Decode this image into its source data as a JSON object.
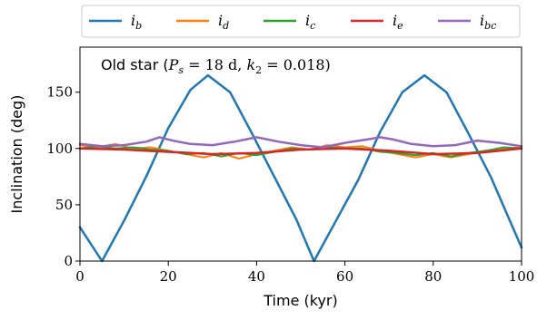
{
  "chart_data": {
    "type": "line",
    "xlabel": "Time (kyr)",
    "ylabel": "Inclination (deg)",
    "xlim": [
      0,
      100
    ],
    "ylim": [
      0,
      190
    ],
    "xticks": [
      0,
      20,
      40,
      60,
      80,
      100
    ],
    "yticks": [
      0,
      50,
      100,
      150
    ],
    "grid": false,
    "legend_placement": "top, outside plot, single row",
    "annotation": {
      "prefix": "Old star (",
      "ps_symbol": "P",
      "ps_sub": "s",
      "ps_value": " = 18 d, ",
      "k_symbol": "k",
      "k_sub": "2",
      "k_value": " = 0.018)"
    },
    "series": [
      {
        "name": "ib",
        "label_main": "i",
        "label_sub": "b",
        "color": "#1f77b4",
        "width": 2.5,
        "x": [
          0,
          5,
          10,
          15,
          20,
          25,
          29,
          34,
          39,
          44,
          49,
          53,
          58,
          63,
          68,
          73,
          78,
          83,
          88,
          93,
          98,
          100
        ],
        "y": [
          30,
          0,
          36,
          75,
          118,
          152,
          165,
          150,
          113,
          75,
          37,
          0,
          36,
          72,
          115,
          150,
          165,
          150,
          113,
          75,
          30,
          12
        ]
      },
      {
        "name": "id",
        "label_main": "i",
        "label_sub": "d",
        "color": "#ff7f0e",
        "width": 2,
        "x": [
          0,
          4,
          8,
          12,
          16,
          20,
          24,
          28,
          32,
          36,
          40,
          44,
          48,
          52,
          56,
          60,
          64,
          68,
          72,
          76,
          80,
          84,
          88,
          92,
          96,
          100
        ],
        "y": [
          103,
          101,
          104,
          100,
          101,
          98,
          95,
          92,
          96,
          91,
          95,
          98,
          101,
          99,
          103,
          101,
          102,
          98,
          95,
          92,
          95,
          92,
          95,
          98,
          100,
          101
        ]
      },
      {
        "name": "ic",
        "label_main": "i",
        "label_sub": "c",
        "color": "#2ca02c",
        "width": 2,
        "x": [
          0,
          4,
          8,
          12,
          16,
          20,
          24,
          28,
          32,
          36,
          40,
          44,
          48,
          52,
          56,
          60,
          64,
          68,
          72,
          76,
          80,
          84,
          88,
          92,
          96,
          100
        ],
        "y": [
          100,
          102,
          100,
          101,
          99,
          98,
          95,
          96,
          93,
          96,
          94,
          97,
          100,
          99,
          101,
          100,
          100,
          97,
          96,
          94,
          96,
          93,
          96,
          98,
          101,
          100
        ]
      },
      {
        "name": "ie",
        "label_main": "i",
        "label_sub": "e",
        "color": "#d62728",
        "width": 2.5,
        "x": [
          0,
          10,
          20,
          30,
          40,
          50,
          60,
          70,
          80,
          90,
          100
        ],
        "y": [
          100,
          99,
          97,
          95,
          96,
          99,
          100,
          98,
          95,
          96,
          100
        ]
      },
      {
        "name": "ibc",
        "label_main": "i",
        "label_sub": "bc",
        "color": "#9467bd",
        "width": 2.5,
        "x": [
          0,
          5,
          10,
          15,
          18,
          21,
          25,
          30,
          35,
          40,
          45,
          50,
          55,
          60,
          65,
          68,
          71,
          75,
          80,
          85,
          90,
          95,
          100
        ],
        "y": [
          104,
          102,
          103,
          106,
          110,
          107,
          104,
          103,
          106,
          110,
          106,
          103,
          101,
          105,
          108,
          110,
          108,
          104,
          102,
          103,
          107,
          105,
          102
        ]
      }
    ]
  }
}
